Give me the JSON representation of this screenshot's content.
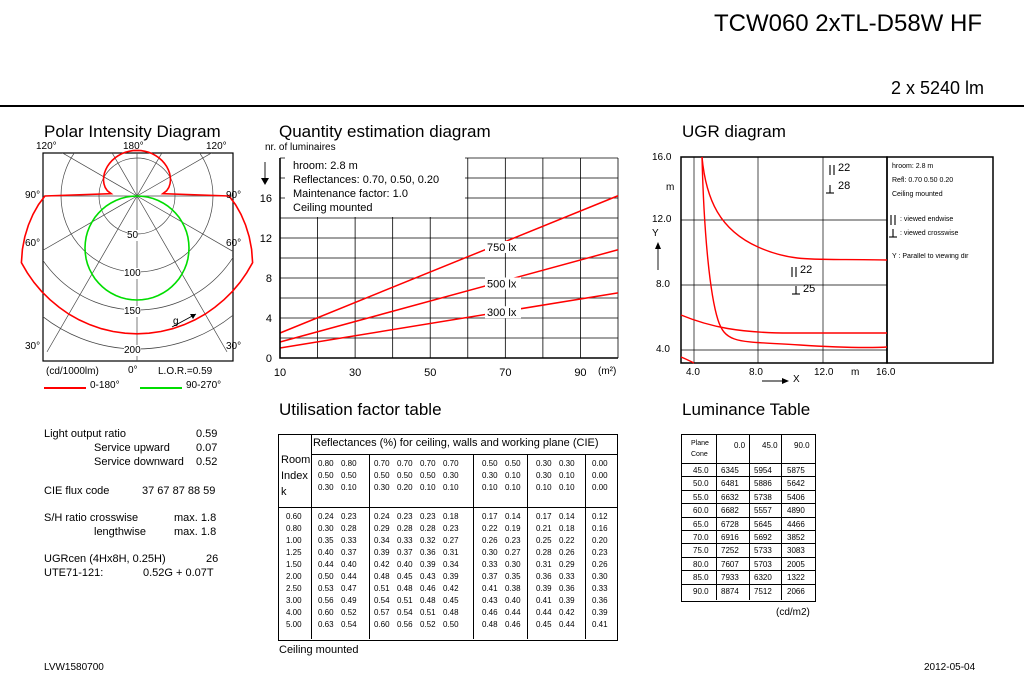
{
  "header": {
    "product": "TCW060 2xTL-D58W HF",
    "flux": "2 x 5240 lm"
  },
  "polar": {
    "title": "Polar Intensity Diagram",
    "angle_labels": [
      "120°",
      "180°",
      "120°",
      "90°",
      "90°",
      "60°",
      "60°",
      "30°",
      "0°",
      "30°"
    ],
    "radial_labels": [
      "50",
      "100",
      "150",
      "200"
    ],
    "unit": "(cd/1000lm)",
    "lor": "L.O.R.=0.59",
    "g_label": "g",
    "legend": [
      {
        "label": "0-180°",
        "color": "#ff0000"
      },
      {
        "label": "90-270°",
        "color": "#00e000"
      }
    ]
  },
  "specs": {
    "light_output_ratio": {
      "label": "Light output ratio",
      "value": "0.59"
    },
    "service_upward": {
      "label": "Service upward",
      "value": "0.07"
    },
    "service_downward": {
      "label": "Service downward",
      "value": "0.52"
    },
    "cie_flux": {
      "label": "CIE flux code",
      "value": "37 67 87 88 59"
    },
    "sh_crosswise": {
      "label": "S/H ratio crosswise",
      "value": "max. 1.8"
    },
    "sh_lengthwise": {
      "label": "lengthwise",
      "value": "max. 1.8"
    },
    "ugrcen": {
      "label": "UGRcen (4Hx8H, 0.25H)",
      "value": "26"
    },
    "ute": {
      "label": "UTE71-121:",
      "value": "0.52G + 0.07T"
    }
  },
  "quantity": {
    "title": "Quantity estimation diagram",
    "ylabel": "nr. of luminaires",
    "xunit": "(m²)",
    "info": [
      "hroom: 2.8 m",
      "Reflectances: 0.70, 0.50, 0.20",
      "Maintenance factor: 1.0",
      "Ceiling mounted"
    ],
    "chart_data": {
      "type": "line",
      "x": [
        10,
        90
      ],
      "xticks": [
        "10",
        "30",
        "50",
        "70",
        "90"
      ],
      "yticks": [
        "0",
        "4",
        "8",
        "12",
        "16"
      ],
      "xlim": [
        10,
        100
      ],
      "ylim": [
        0,
        20
      ],
      "series": [
        {
          "name": "750 lx",
          "values": [
            2.5,
            14.7
          ]
        },
        {
          "name": "500 lx",
          "values": [
            1.6,
            9.8
          ]
        },
        {
          "name": "300 lx",
          "values": [
            1.0,
            5.9
          ]
        }
      ]
    }
  },
  "ugr": {
    "title": "UGR diagram",
    "yticks": [
      "16.0",
      "12.0",
      "8.0",
      "4.0"
    ],
    "xticks": [
      "4.0",
      "8.0",
      "12.0",
      "16.0"
    ],
    "ylabel": "Y",
    "xlabel": "X",
    "unit_m": "m",
    "val1_end": "22",
    "val1_cross": "28",
    "val2_end": "22",
    "val2_cross": "25",
    "legend": {
      "hroom": "hroom: 2.8 m",
      "refl": "Refl: 0.70 0.50 0.20",
      "mount": "Ceiling mounted",
      "endwise": ": viewed endwise",
      "crosswise": ": viewed crosswise",
      "y_note": "Y   : Parallel to viewing dir"
    }
  },
  "utilisation": {
    "title": "Utilisation factor table",
    "header": "Reflectances (%) for ceiling, walls and working plane (CIE)",
    "room_label": [
      "Room",
      "Index",
      "k"
    ],
    "refl_rows": [
      [
        "0.80",
        "0.80",
        "0.70",
        "0.70",
        "0.70",
        "0.70",
        "0.50",
        "0.50",
        "0.30",
        "0.30",
        "0.00"
      ],
      [
        "0.50",
        "0.50",
        "0.50",
        "0.50",
        "0.50",
        "0.30",
        "0.30",
        "0.10",
        "0.30",
        "0.10",
        "0.00"
      ],
      [
        "0.30",
        "0.10",
        "0.30",
        "0.20",
        "0.10",
        "0.10",
        "0.10",
        "0.10",
        "0.10",
        "0.10",
        "0.00"
      ]
    ],
    "rows": [
      {
        "k": "0.60",
        "v": [
          "0.24",
          "0.23",
          "0.24",
          "0.23",
          "0.23",
          "0.18",
          "0.17",
          "0.14",
          "0.17",
          "0.14",
          "0.12"
        ]
      },
      {
        "k": "0.80",
        "v": [
          "0.30",
          "0.28",
          "0.29",
          "0.28",
          "0.28",
          "0.23",
          "0.22",
          "0.19",
          "0.21",
          "0.18",
          "0.16"
        ]
      },
      {
        "k": "1.00",
        "v": [
          "0.35",
          "0.33",
          "0.34",
          "0.33",
          "0.32",
          "0.27",
          "0.26",
          "0.23",
          "0.25",
          "0.22",
          "0.20"
        ]
      },
      {
        "k": "1.25",
        "v": [
          "0.40",
          "0.37",
          "0.39",
          "0.37",
          "0.36",
          "0.31",
          "0.30",
          "0.27",
          "0.28",
          "0.26",
          "0.23"
        ]
      },
      {
        "k": "1.50",
        "v": [
          "0.44",
          "0.40",
          "0.42",
          "0.40",
          "0.39",
          "0.34",
          "0.33",
          "0.30",
          "0.31",
          "0.29",
          "0.26"
        ]
      },
      {
        "k": "2.00",
        "v": [
          "0.50",
          "0.44",
          "0.48",
          "0.45",
          "0.43",
          "0.39",
          "0.37",
          "0.35",
          "0.36",
          "0.33",
          "0.30"
        ]
      },
      {
        "k": "2.50",
        "v": [
          "0.53",
          "0.47",
          "0.51",
          "0.48",
          "0.46",
          "0.42",
          "0.41",
          "0.38",
          "0.39",
          "0.36",
          "0.33"
        ]
      },
      {
        "k": "3.00",
        "v": [
          "0.56",
          "0.49",
          "0.54",
          "0.51",
          "0.48",
          "0.45",
          "0.43",
          "0.40",
          "0.41",
          "0.39",
          "0.36"
        ]
      },
      {
        "k": "4.00",
        "v": [
          "0.60",
          "0.52",
          "0.57",
          "0.54",
          "0.51",
          "0.48",
          "0.46",
          "0.44",
          "0.44",
          "0.42",
          "0.39"
        ]
      },
      {
        "k": "5.00",
        "v": [
          "0.63",
          "0.54",
          "0.60",
          "0.56",
          "0.52",
          "0.50",
          "0.48",
          "0.46",
          "0.45",
          "0.44",
          "0.41"
        ]
      }
    ],
    "footer": "Ceiling mounted"
  },
  "luminance": {
    "title": "Luminance Table",
    "corner": [
      "Plane",
      "Cone"
    ],
    "cols": [
      "0.0",
      "45.0",
      "90.0"
    ],
    "rows": [
      {
        "cone": "45.0",
        "v": [
          "6345",
          "5954",
          "5875"
        ]
      },
      {
        "cone": "50.0",
        "v": [
          "6481",
          "5886",
          "5642"
        ]
      },
      {
        "cone": "55.0",
        "v": [
          "6632",
          "5738",
          "5406"
        ]
      },
      {
        "cone": "60.0",
        "v": [
          "6682",
          "5557",
          "4890"
        ]
      },
      {
        "cone": "65.0",
        "v": [
          "6728",
          "5645",
          "4466"
        ]
      },
      {
        "cone": "70.0",
        "v": [
          "6916",
          "5692",
          "3852"
        ]
      },
      {
        "cone": "75.0",
        "v": [
          "7252",
          "5733",
          "3083"
        ]
      },
      {
        "cone": "80.0",
        "v": [
          "7607",
          "5703",
          "2005"
        ]
      },
      {
        "cone": "85.0",
        "v": [
          "7933",
          "6320",
          "1322"
        ]
      },
      {
        "cone": "90.0",
        "v": [
          "8874",
          "7512",
          "2066"
        ]
      }
    ],
    "unit": "(cd/m2)"
  },
  "footer": {
    "code": "LVW1580700",
    "date": "2012-05-04"
  }
}
